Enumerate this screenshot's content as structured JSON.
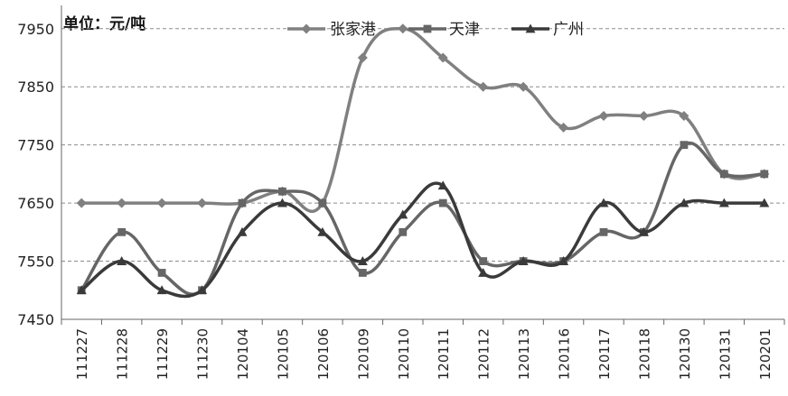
{
  "chart_data": {
    "type": "line",
    "title": "",
    "unit_label": "单位：元/吨",
    "xlabel": "",
    "ylabel": "",
    "categories": [
      "111227",
      "111228",
      "111229",
      "111230",
      "120104",
      "120105",
      "120106",
      "120109",
      "120110",
      "120111",
      "120112",
      "120113",
      "120116",
      "120117",
      "120118",
      "120130",
      "120131",
      "120201"
    ],
    "ylim": [
      7450,
      7990
    ],
    "yticks": [
      7450,
      7550,
      7650,
      7750,
      7850,
      7950
    ],
    "grid": "horizontal-dashed",
    "legend_position": "top-center",
    "series": [
      {
        "name": "张家港",
        "marker": "diamond",
        "color": "#808080",
        "values": [
          7650,
          7650,
          7650,
          7650,
          7650,
          7670,
          7650,
          7900,
          7950,
          7900,
          7850,
          7850,
          7780,
          7800,
          7800,
          7800,
          7700,
          7700
        ]
      },
      {
        "name": "天津",
        "marker": "square",
        "color": "#666666",
        "values": [
          7500,
          7600,
          7530,
          7500,
          7650,
          7670,
          7650,
          7530,
          7600,
          7650,
          7550,
          7550,
          7550,
          7600,
          7600,
          7750,
          7700,
          7700
        ]
      },
      {
        "name": "广州",
        "marker": "triangle",
        "color": "#3a3a3a",
        "values": [
          7500,
          7550,
          7500,
          7500,
          7600,
          7650,
          7600,
          7550,
          7630,
          7680,
          7530,
          7550,
          7550,
          7650,
          7600,
          7650,
          7650,
          7650
        ]
      }
    ]
  }
}
